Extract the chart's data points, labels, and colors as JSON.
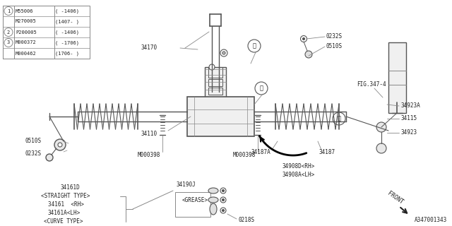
{
  "bg_color": "#ffffff",
  "fig_width": 6.4,
  "fig_height": 3.2,
  "dpi": 100,
  "legend": {
    "rows": [
      [
        "1",
        "M55006",
        "( -1406)"
      ],
      [
        " ",
        "M270005",
        "(1407- )"
      ],
      [
        "2",
        "P200005",
        "( -1406)"
      ],
      [
        "3",
        "M000372",
        "( -1706)"
      ],
      [
        " ",
        "M000462",
        "(1706- )"
      ]
    ]
  },
  "gray": "#888888",
  "dark": "#222222",
  "line_color": "#555555"
}
